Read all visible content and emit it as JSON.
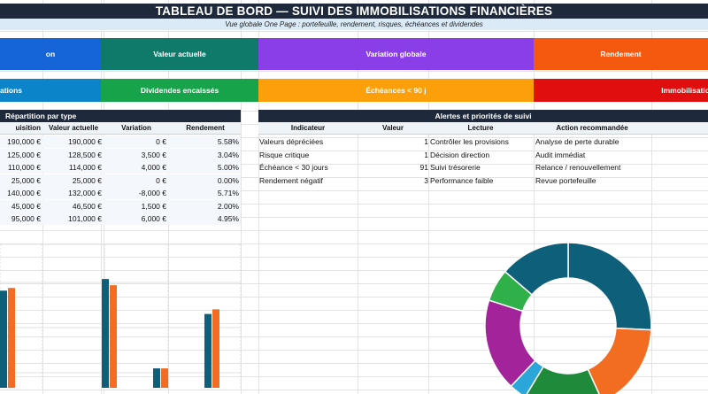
{
  "header": {
    "title": "TABLEAU DE BORD — SUIVI DES IMMOBILISATIONS FINANCIÈRES",
    "subtitle": "Vue globale One Page : portefeuille, rendement, risques, échéances et dividendes"
  },
  "kpi_row1": [
    {
      "label": "on",
      "color": "#1565d8"
    },
    {
      "label": "Valeur actuelle",
      "color": "#0f7a6a"
    },
    {
      "label": "Variation globale",
      "color": "#8a3ee8"
    },
    {
      "label": "Rendement",
      "color": "#f4590f"
    }
  ],
  "kpi_row2": [
    {
      "label": "ations",
      "color": "#0c84c9"
    },
    {
      "label": "Dividendes encaissés",
      "color": "#16a34a"
    },
    {
      "label": "Échéances < 90 j",
      "color": "#fb9f0a"
    },
    {
      "label": "Immobilisatio",
      "color": "#e00e0e"
    }
  ],
  "portfolio_table": {
    "title": "Répartition par type",
    "columns": [
      "uisition",
      "Valeur actuelle",
      "Variation",
      "Rendement"
    ],
    "rows": [
      [
        "190,000 €",
        "190,000 €",
        "0 €",
        "5.58%"
      ],
      [
        "125,000 €",
        "128,500 €",
        "3,500 €",
        "3.04%"
      ],
      [
        "110,000 €",
        "114,000 €",
        "4,000 €",
        "5.00%"
      ],
      [
        "25,000 €",
        "25,000 €",
        "0 €",
        "0.00%"
      ],
      [
        "140,000 €",
        "132,000 €",
        "-8,000 €",
        "5.71%"
      ],
      [
        "45,000 €",
        "46,500 €",
        "1,500 €",
        "2.00%"
      ],
      [
        "95,000 €",
        "101,000 €",
        "6,000 €",
        "4.95%"
      ]
    ]
  },
  "alerts_table": {
    "title": "Alertes et priorités de suivi",
    "columns": [
      "Indicateur",
      "Valeur",
      "Lecture",
      "Action recommandée"
    ],
    "rows": [
      [
        "Valeurs dépréciées",
        "1",
        "Contrôler les provisions",
        "Analyse de perte durable"
      ],
      [
        "Risque critique",
        "1",
        "Décision direction",
        "Audit immédiat"
      ],
      [
        "Échéance < 30 jours",
        "91",
        "Suivi trésorerie",
        "Relance / renouvellement"
      ],
      [
        "Rendement négatif",
        "3",
        "Performance faible",
        "Revue portefeuille"
      ]
    ]
  },
  "chart_data": [
    {
      "type": "bar",
      "title": "",
      "xlabel": "",
      "ylabel": "",
      "ylim": [
        0,
        180000
      ],
      "series": [
        {
          "color": "#0e5f7a",
          "values": [
            125000,
            140000,
            25000,
            95000
          ]
        },
        {
          "color": "#f26c22",
          "values": [
            128500,
            132000,
            25000,
            101000
          ]
        }
      ],
      "categories": [
        "",
        "",
        "",
        ""
      ]
    },
    {
      "type": "pie",
      "title": "",
      "slices": [
        {
          "value": 190000,
          "color": "#0e5f7a"
        },
        {
          "value": 128500,
          "color": "#f26c22"
        },
        {
          "value": 114000,
          "color": "#1f8a3a"
        },
        {
          "value": 25000,
          "color": "#2aa6d8"
        },
        {
          "value": 132000,
          "color": "#a3239a"
        },
        {
          "value": 46500,
          "color": "#2fb049"
        },
        {
          "value": 101000,
          "color": "#0e5f7a"
        }
      ]
    }
  ]
}
